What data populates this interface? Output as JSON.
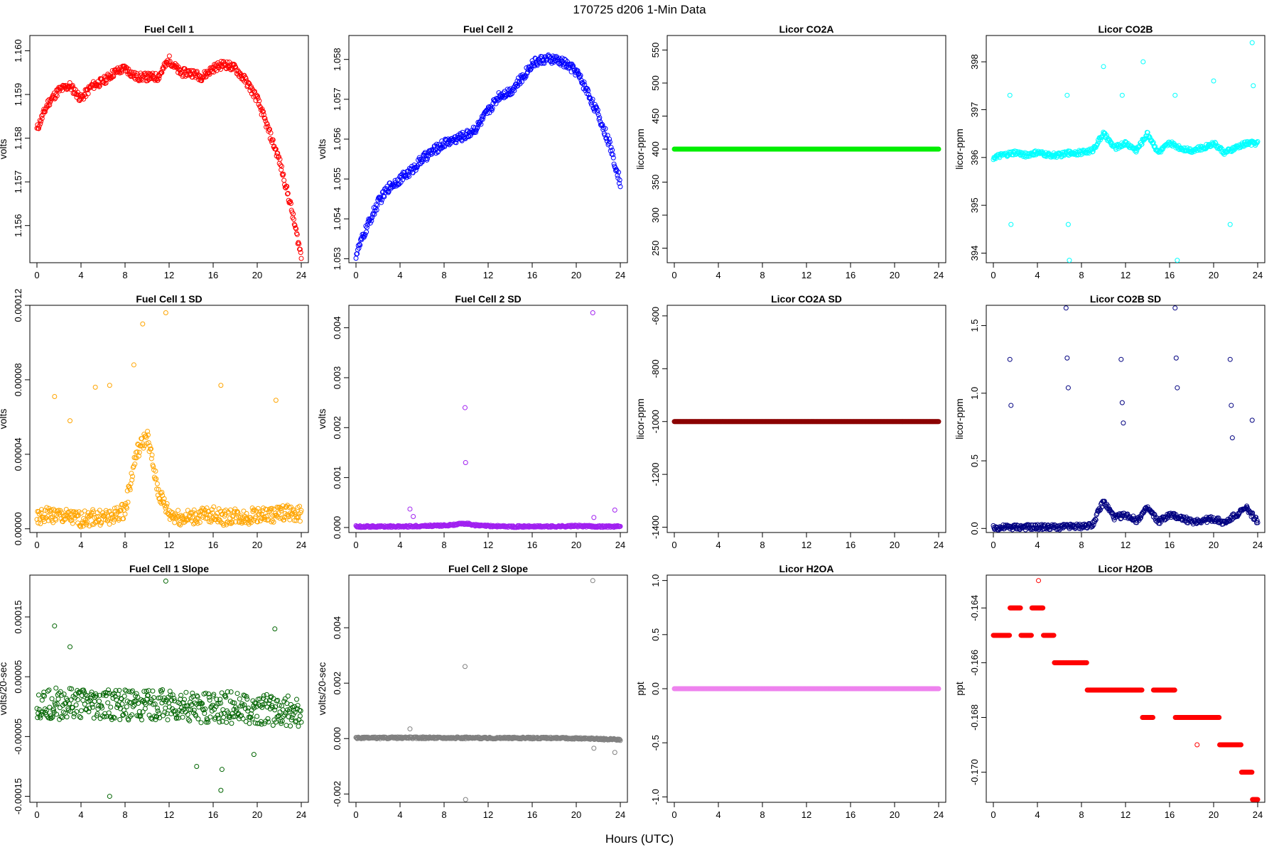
{
  "figure": {
    "title": "170725    d206    1-Min Data",
    "xlabel": "Hours (UTC)"
  },
  "chart_data": [
    {
      "title": "Fuel Cell 1",
      "type": "scatter",
      "ylabel": "volts",
      "color": "#ff0000",
      "xlim": [
        0,
        24
      ],
      "xticks": [
        0,
        4,
        8,
        12,
        16,
        20,
        24
      ],
      "ylim": [
        1.15515,
        1.16035
      ],
      "yticks": [
        1.156,
        1.157,
        1.158,
        1.159,
        1.16
      ],
      "ytick_labels": [
        "1.156",
        "1.157",
        "1.158",
        "1.159",
        "1.160"
      ],
      "x": [
        0,
        1,
        2,
        3,
        4,
        5,
        6,
        7,
        8,
        9,
        10,
        11,
        12,
        13,
        14,
        15,
        16,
        17,
        18,
        19,
        20,
        21,
        22,
        23,
        24
      ],
      "y": [
        1.1582,
        1.1588,
        1.1591,
        1.1592,
        1.1589,
        1.1592,
        1.1593,
        1.1595,
        1.1596,
        1.1594,
        1.1594,
        1.1594,
        1.1598,
        1.1595,
        1.1595,
        1.1594,
        1.1596,
        1.1597,
        1.1596,
        1.1593,
        1.1589,
        1.1582,
        1.1575,
        1.1565,
        1.1553
      ]
    },
    {
      "title": "Fuel Cell 2",
      "type": "scatter",
      "ylabel": "volts",
      "color": "#0000ff",
      "xlim": [
        0,
        24
      ],
      "xticks": [
        0,
        4,
        8,
        12,
        16,
        20,
        24
      ],
      "ylim": [
        1.0529,
        1.0586
      ],
      "yticks": [
        1.053,
        1.054,
        1.055,
        1.056,
        1.057,
        1.058
      ],
      "ytick_labels": [
        "1.053",
        "1.054",
        "1.055",
        "1.056",
        "1.057",
        "1.058"
      ],
      "x": [
        0,
        1,
        2,
        3,
        4,
        5,
        6,
        7,
        8,
        9,
        10,
        11,
        12,
        13,
        14,
        15,
        16,
        17,
        18,
        19,
        20,
        21,
        22,
        23,
        24
      ],
      "y": [
        1.0531,
        1.0538,
        1.0544,
        1.0548,
        1.055,
        1.0552,
        1.0555,
        1.0557,
        1.0559,
        1.056,
        1.0561,
        1.0563,
        1.0567,
        1.0571,
        1.0572,
        1.0575,
        1.0579,
        1.058,
        1.058,
        1.0579,
        1.0577,
        1.0572,
        1.0566,
        1.0559,
        1.0549
      ]
    },
    {
      "title": "Licor CO2A",
      "type": "scatter",
      "ylabel": "licor-ppm",
      "color": "#00ee00",
      "xlim": [
        0,
        24
      ],
      "xticks": [
        0,
        4,
        8,
        12,
        16,
        20,
        24
      ],
      "ylim": [
        228,
        572
      ],
      "yticks": [
        250,
        300,
        350,
        400,
        450,
        500,
        550
      ],
      "ytick_labels": [
        "250",
        "300",
        "350",
        "400",
        "450",
        "500",
        "550"
      ],
      "x": [
        0,
        24
      ],
      "y": [
        400,
        400
      ]
    },
    {
      "title": "Licor CO2B",
      "type": "scatter",
      "ylabel": "licor-ppm",
      "color": "#00ffff",
      "xlim": [
        0,
        24
      ],
      "xticks": [
        0,
        4,
        8,
        12,
        16,
        20,
        24
      ],
      "ylim": [
        393.8,
        398.55
      ],
      "yticks": [
        394,
        395,
        396,
        397,
        398
      ],
      "ytick_labels": [
        "394",
        "395",
        "396",
        "397",
        "398"
      ],
      "x": [
        0,
        1,
        2,
        3,
        4,
        5,
        6,
        7,
        8,
        9,
        10,
        11,
        12,
        13,
        14,
        15,
        16,
        17,
        18,
        19,
        20,
        21,
        22,
        23,
        24
      ],
      "y": [
        396.0,
        396.05,
        396.1,
        396.05,
        396.1,
        396.05,
        396.05,
        396.1,
        396.1,
        396.15,
        396.5,
        396.2,
        396.3,
        396.15,
        396.5,
        396.1,
        396.3,
        396.2,
        396.15,
        396.2,
        396.3,
        396.1,
        396.2,
        396.3,
        396.3
      ],
      "outliers_x": [
        1.5,
        1.6,
        6.7,
        6.8,
        6.9,
        10.0,
        11.7,
        13.6,
        16.5,
        16.7,
        20.0,
        21.5,
        23.5,
        23.6
      ],
      "outliers_y": [
        397.3,
        394.6,
        397.3,
        394.6,
        393.85,
        397.9,
        397.3,
        398.0,
        397.3,
        393.85,
        397.6,
        394.6,
        398.4,
        397.5
      ]
    },
    {
      "title": "Fuel Cell 1 SD",
      "type": "scatter",
      "ylabel": "volts",
      "color": "#ffa500",
      "xlim": [
        0,
        24
      ],
      "xticks": [
        0,
        4,
        8,
        12,
        16,
        20,
        24
      ],
      "ylim": [
        -2e-06,
        0.00012
      ],
      "yticks": [
        0,
        4e-05,
        8e-05,
        0.00012
      ],
      "ytick_labels": [
        "0.00000",
        "0.00004",
        "0.00008",
        "0.00012"
      ],
      "x": [
        0,
        1,
        2,
        3,
        4,
        5,
        6,
        7,
        8,
        9,
        10,
        11,
        12,
        13,
        14,
        15,
        16,
        17,
        18,
        19,
        20,
        21,
        22,
        23,
        24
      ],
      "y": [
        5e-06,
        8e-06,
        7e-06,
        6e-06,
        5e-06,
        6e-06,
        6e-06,
        7e-06,
        1e-05,
        4e-05,
        5e-05,
        2e-05,
        8e-06,
        6e-06,
        6e-06,
        7e-06,
        8e-06,
        6e-06,
        7e-06,
        6e-06,
        8e-06,
        7e-06,
        8e-06,
        9e-06,
        8e-06
      ],
      "outliers_x": [
        1.6,
        3.0,
        5.3,
        6.6,
        8.8,
        9.6,
        11.7,
        16.7,
        21.7
      ],
      "outliers_y": [
        7.1e-05,
        5.8e-05,
        7.6e-05,
        7.7e-05,
        8.8e-05,
        0.00011,
        0.000116,
        7.7e-05,
        6.9e-05
      ]
    },
    {
      "title": "Fuel Cell 2 SD",
      "type": "scatter",
      "ylabel": "volts",
      "color": "#a020f0",
      "xlim": [
        0,
        24
      ],
      "xticks": [
        0,
        4,
        8,
        12,
        16,
        20,
        24
      ],
      "ylim": [
        -0.0001,
        0.00445
      ],
      "yticks": [
        0,
        0.001,
        0.002,
        0.003,
        0.004
      ],
      "ytick_labels": [
        "0.000",
        "0.001",
        "0.002",
        "0.003",
        "0.004"
      ],
      "x": [
        0,
        2,
        4,
        6,
        8,
        9,
        10,
        11,
        12,
        14,
        16,
        18,
        20,
        22,
        24
      ],
      "y": [
        2e-05,
        2e-05,
        2e-05,
        3e-05,
        4e-05,
        6e-05,
        8e-05,
        4e-05,
        3e-05,
        2e-05,
        2e-05,
        2e-05,
        3e-05,
        2e-05,
        2e-05
      ],
      "outliers_x": [
        4.9,
        5.2,
        9.9,
        9.95,
        21.5,
        21.6,
        23.5
      ],
      "outliers_y": [
        0.00037,
        0.00022,
        0.0024,
        0.0013,
        0.0043,
        0.0002,
        0.00035
      ]
    },
    {
      "title": "Licor CO2A SD",
      "type": "scatter",
      "ylabel": "licor-ppm",
      "color": "#8b0000",
      "xlim": [
        0,
        24
      ],
      "xticks": [
        0,
        4,
        8,
        12,
        16,
        20,
        24
      ],
      "ylim": [
        -1420,
        -560
      ],
      "yticks": [
        -1400,
        -1200,
        -1000,
        -800,
        -600
      ],
      "ytick_labels": [
        "-1400",
        "-1200",
        "-1000",
        "-800",
        "-600"
      ],
      "x": [
        0,
        24
      ],
      "y": [
        -1000,
        -1000
      ]
    },
    {
      "title": "Licor CO2B SD",
      "type": "scatter",
      "ylabel": "licor-ppm",
      "color": "#000080",
      "xlim": [
        0,
        24
      ],
      "xticks": [
        0,
        4,
        8,
        12,
        16,
        20,
        24
      ],
      "ylim": [
        -0.03,
        1.65
      ],
      "yticks": [
        0,
        0.5,
        1.0,
        1.5
      ],
      "ytick_labels": [
        "0.0",
        "0.5",
        "1.0",
        "1.5"
      ],
      "x": [
        0,
        2,
        4,
        6,
        8,
        9,
        10,
        11,
        12,
        13,
        14,
        15,
        16,
        17,
        18,
        19,
        20,
        21,
        22,
        23,
        24
      ],
      "y": [
        0.005,
        0.01,
        0.01,
        0.01,
        0.015,
        0.03,
        0.2,
        0.08,
        0.1,
        0.06,
        0.15,
        0.05,
        0.1,
        0.08,
        0.05,
        0.06,
        0.07,
        0.04,
        0.1,
        0.15,
        0.05
      ],
      "outliers_x": [
        1.5,
        1.6,
        6.6,
        6.7,
        6.8,
        11.6,
        11.7,
        11.8,
        16.5,
        16.6,
        16.7,
        21.5,
        21.6,
        21.7,
        23.5
      ],
      "outliers_y": [
        1.25,
        0.91,
        1.63,
        1.26,
        1.04,
        1.25,
        0.93,
        0.78,
        1.63,
        1.26,
        1.04,
        1.25,
        0.91,
        0.67,
        0.8
      ]
    },
    {
      "title": "Fuel Cell 1 Slope",
      "type": "scatter",
      "ylabel": "volts/20-sec",
      "color": "#006400",
      "xlim": [
        0,
        24
      ],
      "xticks": [
        0,
        4,
        8,
        12,
        16,
        20,
        24
      ],
      "ylim": [
        -0.00016,
        0.00022
      ],
      "yticks": [
        -0.00015,
        -5e-05,
        5e-05,
        0.00015
      ],
      "ytick_labels": [
        "-0.00015",
        "-0.00005",
        "0.00005",
        "0.00015"
      ],
      "x": [
        0,
        2,
        4,
        6,
        8,
        10,
        12,
        14,
        16,
        18,
        20,
        22,
        24
      ],
      "y": [
        5e-06,
        5e-06,
        3e-06,
        2e-06,
        2e-06,
        4e-06,
        2e-06,
        0.0,
        -1e-06,
        -2e-06,
        -5e-06,
        -8e-06,
        -1e-05
      ],
      "outliers_x": [
        1.6,
        3.0,
        6.6,
        11.7,
        14.5,
        16.7,
        16.8,
        19.7,
        21.6
      ],
      "outliers_y": [
        0.000135,
        0.0001,
        -0.00015,
        0.00021,
        -0.0001,
        -0.00014,
        -0.000105,
        -8e-05,
        0.00013
      ]
    },
    {
      "title": "Fuel Cell 2 Slope",
      "type": "scatter",
      "ylabel": "volts/20-sec",
      "color": "#808080",
      "xlim": [
        0,
        24
      ],
      "xticks": [
        0,
        4,
        8,
        12,
        16,
        20,
        24
      ],
      "ylim": [
        -0.0023,
        0.0059
      ],
      "yticks": [
        -0.002,
        0.0,
        0.002,
        0.004
      ],
      "ytick_labels": [
        "-0.002",
        "0.000",
        "0.002",
        "0.004"
      ],
      "x": [
        0,
        4,
        8,
        12,
        16,
        20,
        24
      ],
      "y": [
        2e-05,
        3e-05,
        3e-05,
        2e-05,
        2e-05,
        1e-05,
        -4e-05
      ],
      "outliers_x": [
        4.9,
        9.9,
        9.95,
        21.5,
        21.6,
        23.5
      ],
      "outliers_y": [
        0.00035,
        0.0026,
        -0.0022,
        0.0057,
        -0.00035,
        -0.0005
      ]
    },
    {
      "title": "Licor H2OA",
      "type": "scatter",
      "ylabel": "ppt",
      "color": "#ee82ee",
      "xlim": [
        0,
        24
      ],
      "xticks": [
        0,
        4,
        8,
        12,
        16,
        20,
        24
      ],
      "ylim": [
        -1.05,
        1.05
      ],
      "yticks": [
        -1.0,
        -0.5,
        0.0,
        0.5,
        1.0
      ],
      "ytick_labels": [
        "-1.0",
        "-0.5",
        "0.0",
        "0.5",
        "1.0"
      ],
      "x": [
        0,
        24
      ],
      "y": [
        0,
        0
      ]
    },
    {
      "title": "Licor H2OB",
      "type": "scatter",
      "ylabel": "ppt",
      "color": "#ff0000",
      "xlim": [
        0,
        24
      ],
      "xticks": [
        0,
        4,
        8,
        12,
        16,
        20,
        24
      ],
      "ylim": [
        -0.1711,
        -0.1628
      ],
      "yticks": [
        -0.17,
        -0.168,
        -0.166,
        -0.164
      ],
      "ytick_labels": [
        "-0.170",
        "-0.168",
        "-0.166",
        "-0.164"
      ],
      "x": [
        0,
        1,
        2,
        3,
        4,
        5,
        6,
        7,
        8,
        9,
        10,
        11,
        12,
        13,
        14,
        15,
        16,
        17,
        18,
        19,
        20,
        21,
        22,
        23,
        24
      ],
      "y": [
        -0.165,
        -0.165,
        -0.164,
        -0.165,
        -0.164,
        -0.165,
        -0.166,
        -0.166,
        -0.166,
        -0.167,
        -0.167,
        -0.167,
        -0.167,
        -0.167,
        -0.168,
        -0.167,
        -0.167,
        -0.168,
        -0.168,
        -0.168,
        -0.168,
        -0.169,
        -0.169,
        -0.17,
        -0.171
      ],
      "outliers_x": [
        4.1,
        18.5
      ],
      "outliers_y": [
        -0.163,
        -0.169
      ]
    }
  ]
}
